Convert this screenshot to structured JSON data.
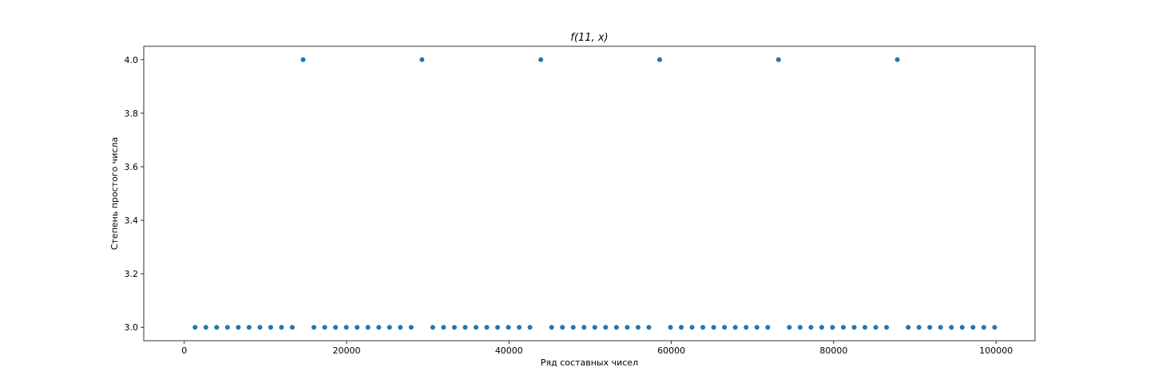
{
  "chart_data": {
    "type": "scatter",
    "title": "f(11, x)",
    "xlabel": "Ряд составных чисел",
    "ylabel": "Степень простого числа",
    "xlim": [
      -4990,
      104800
    ],
    "ylim": [
      2.95,
      4.05
    ],
    "xticks": [
      0,
      20000,
      40000,
      60000,
      80000,
      100000
    ],
    "yticks": [
      3.0,
      3.2,
      3.4,
      3.6,
      3.8,
      4.0
    ],
    "xtick_labels": [
      "0",
      "20000",
      "40000",
      "60000",
      "80000",
      "100000"
    ],
    "ytick_labels": [
      "3.0",
      "3.2",
      "3.4",
      "3.6",
      "3.8",
      "4.0"
    ],
    "grid": false,
    "marker_color": "#1f77b4",
    "series": [
      {
        "x": [
          1331,
          2662,
          3993,
          5324,
          6655,
          7986,
          9317,
          10648,
          11979,
          13310,
          14641,
          15972,
          17303,
          18634,
          19965,
          21296,
          22627,
          23958,
          25289,
          26620,
          27951,
          29282,
          30613,
          31944,
          33275,
          34606,
          35937,
          37268,
          38599,
          39930,
          41261,
          42592,
          43923,
          45254,
          46585,
          47916,
          49247,
          50578,
          51909,
          53240,
          54571,
          55902,
          57233,
          58564,
          59895,
          61226,
          62557,
          63888,
          65219,
          66550,
          67881,
          69212,
          70543,
          71874,
          73205,
          74536,
          75867,
          77198,
          78529,
          79860,
          81191,
          82522,
          83853,
          85184,
          86515,
          87846,
          89177,
          90508,
          91839,
          93170,
          94501,
          95832,
          97163,
          98494,
          99825
        ],
        "y": [
          3,
          3,
          3,
          3,
          3,
          3,
          3,
          3,
          3,
          3,
          4,
          3,
          3,
          3,
          3,
          3,
          3,
          3,
          3,
          3,
          3,
          4,
          3,
          3,
          3,
          3,
          3,
          3,
          3,
          3,
          3,
          3,
          4,
          3,
          3,
          3,
          3,
          3,
          3,
          3,
          3,
          3,
          3,
          4,
          3,
          3,
          3,
          3,
          3,
          3,
          3,
          3,
          3,
          3,
          4,
          3,
          3,
          3,
          3,
          3,
          3,
          3,
          3,
          3,
          3,
          4,
          3,
          3,
          3,
          3,
          3,
          3,
          3,
          3,
          3
        ]
      }
    ]
  }
}
